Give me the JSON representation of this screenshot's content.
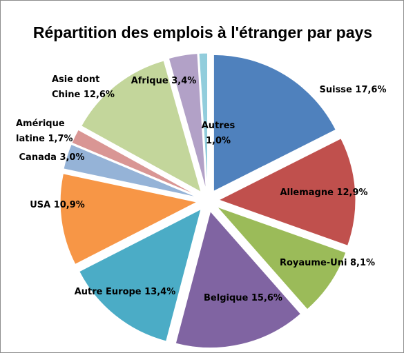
{
  "chart_data": {
    "type": "pie",
    "title": "Répartition des emplois à l'étranger par pays",
    "exploded": true,
    "slices": [
      {
        "label_lines": [
          "Suisse  17,6%"
        ],
        "value": 17.6,
        "color": "#4f81bd"
      },
      {
        "label_lines": [
          "Allemagne  12,9%"
        ],
        "value": 12.9,
        "color": "#c0504d"
      },
      {
        "label_lines": [
          "Royaume-Uni  8,1%"
        ],
        "value": 8.1,
        "color": "#9bbb59"
      },
      {
        "label_lines": [
          "Belgique  15,6%"
        ],
        "value": 15.6,
        "color": "#8064a2"
      },
      {
        "label_lines": [
          "Autre  Europe  13,4%"
        ],
        "value": 13.4,
        "color": "#4bacc6"
      },
      {
        "label_lines": [
          "USA  10,9%"
        ],
        "value": 10.9,
        "color": "#f79646"
      },
      {
        "label_lines": [
          "Canada  3,0%"
        ],
        "value": 3.0,
        "color": "#95b3d7"
      },
      {
        "label_lines": [
          "Amérique",
          "latine  1,7%"
        ],
        "value": 1.7,
        "color": "#d99694"
      },
      {
        "label_lines": [
          "Asie dont",
          "Chine  12,6%"
        ],
        "value": 12.6,
        "color": "#c3d69b"
      },
      {
        "label_lines": [
          "Afrique 3,4%"
        ],
        "value": 3.4,
        "color": "#b2a1c7"
      },
      {
        "label_lines": [
          "Autres",
          "1,0%"
        ],
        "value": 1.0,
        "color": "#92cddc"
      }
    ]
  }
}
